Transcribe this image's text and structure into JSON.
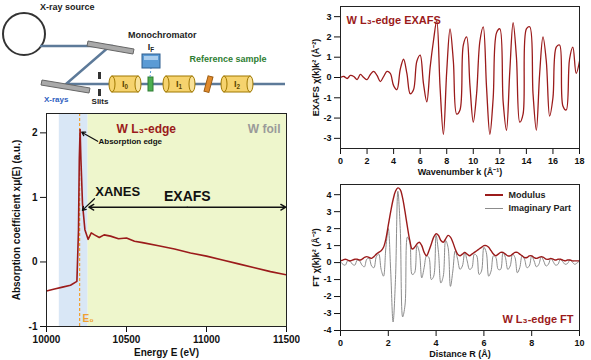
{
  "diagram": {
    "source": "X-ray source",
    "monochromator": "Monochromator",
    "beam": "X-rays",
    "slits": "Slits",
    "detectors": [
      "I0",
      "I1",
      "I2"
    ],
    "fluorescence": "IF",
    "reference": "Reference sample"
  },
  "chart_data": [
    {
      "type": "line",
      "title": "W L₃-edge",
      "subtitle": "W foil",
      "annotation": "Absorption edge",
      "xlabel": "Energy E (eV)",
      "ylabel": "Absorption coefficient xμ(E) (a.u.)",
      "xlim": [
        10000,
        11500
      ],
      "xticks": [
        10000,
        10500,
        11000,
        11500
      ],
      "ylim": [
        -1,
        2.3
      ],
      "yticks": [
        -1,
        0,
        1,
        2
      ],
      "color": "#9b1b1b",
      "e0": 10207,
      "e0_label": "E₀",
      "regions": [
        {
          "name": "XANES",
          "x": [
            10080,
            10260
          ],
          "color": "#d9e7f6"
        },
        {
          "name": "EXAFS",
          "x": [
            10260,
            11500
          ],
          "color": "#eef6cc"
        }
      ],
      "x": [
        10000,
        10050,
        10100,
        10150,
        10190,
        10200,
        10205,
        10210,
        10215,
        10225,
        10240,
        10260,
        10280,
        10300,
        10330,
        10360,
        10400,
        10450,
        10500,
        10550,
        10600,
        10700,
        10800,
        10900,
        11000,
        11100,
        11200,
        11300,
        11400,
        11500
      ],
      "values": [
        -0.45,
        -0.42,
        -0.39,
        -0.36,
        -0.3,
        0.5,
        1.6,
        2.05,
        1.6,
        0.9,
        0.5,
        0.35,
        0.45,
        0.42,
        0.38,
        0.42,
        0.4,
        0.36,
        0.37,
        0.32,
        0.3,
        0.25,
        0.2,
        0.14,
        0.09,
        0.03,
        -0.03,
        -0.09,
        -0.15,
        -0.2
      ]
    },
    {
      "type": "line",
      "title": "W L₃-edge EXAFS",
      "xlabel": "Wavenumber k (Å⁻¹)",
      "ylabel": "EXAFS χ(k)k² (Å⁻²)",
      "xlim": [
        0,
        18
      ],
      "xticks": [
        0,
        2,
        4,
        6,
        8,
        10,
        12,
        14,
        16,
        18
      ],
      "ylim": [
        -3.5,
        3.5
      ],
      "yticks": [
        -3,
        -2,
        -1,
        0,
        1,
        2,
        3
      ],
      "color": "#9b1b1b",
      "x": [
        0,
        0.25,
        0.5,
        0.75,
        1,
        1.25,
        1.5,
        1.75,
        2,
        2.25,
        2.5,
        2.75,
        3,
        3.25,
        3.5,
        3.75,
        4,
        4.25,
        4.5,
        4.75,
        5,
        5.25,
        5.5,
        5.75,
        6,
        6.25,
        6.5,
        6.75,
        7,
        7.25,
        7.5,
        7.75,
        8,
        8.25,
        8.5,
        8.75,
        9,
        9.25,
        9.5,
        9.75,
        10,
        10.25,
        10.5,
        10.75,
        11,
        11.25,
        11.5,
        11.75,
        12,
        12.25,
        12.5,
        12.75,
        13,
        13.25,
        13.5,
        13.75,
        14,
        14.25,
        14.5,
        14.75,
        15,
        15.25,
        15.5,
        15.75,
        16,
        16.25,
        16.5,
        16.75,
        17,
        17.25,
        17.5,
        17.75,
        18
      ],
      "values": [
        0,
        0.05,
        -0.05,
        0.1,
        0.05,
        -0.1,
        0.15,
        0,
        -0.1,
        0.15,
        0.3,
        0.1,
        -0.2,
        0.05,
        0.3,
        0.2,
        -0.4,
        -0.6,
        0.4,
        0.9,
        0.2,
        -0.8,
        -0.6,
        0.8,
        1.1,
        -0.3,
        -1.2,
        0.5,
        1.8,
        2.8,
        -0.5,
        -2.8,
        0.3,
        2.4,
        0.8,
        -1.8,
        -1.6,
        1.6,
        2.0,
        -0.4,
        -2.2,
        -0.8,
        1.8,
        2.5,
        -0.5,
        -2.8,
        -1.0,
        2.2,
        2.4,
        -1.2,
        -2.6,
        0.3,
        2.7,
        1.0,
        -2.2,
        -1.8,
        2.4,
        2.5,
        -0.8,
        -2.6,
        0.2,
        2.0,
        0.8,
        -1.9,
        -1.0,
        1.5,
        1.6,
        -1.4,
        -1.6,
        0.9,
        1.5,
        0.2,
        0.8
      ]
    },
    {
      "type": "line",
      "title": "W L₃-edge FT",
      "xlabel": "Distance R (Å)",
      "ylabel": "FT χ(k)k² (Å⁻³)",
      "xlim": [
        0,
        10
      ],
      "xticks": [
        0,
        2,
        4,
        6,
        8,
        10
      ],
      "ylim": [
        -4,
        4.6
      ],
      "yticks": [
        -4,
        -3,
        -2,
        -1,
        0,
        1,
        2,
        3,
        4
      ],
      "legend": "top-right",
      "x": [
        0,
        0.1,
        0.2,
        0.3,
        0.4,
        0.5,
        0.6,
        0.7,
        0.8,
        0.9,
        1,
        1.1,
        1.2,
        1.3,
        1.4,
        1.5,
        1.6,
        1.7,
        1.8,
        1.9,
        2,
        2.1,
        2.2,
        2.3,
        2.4,
        2.5,
        2.6,
        2.7,
        2.8,
        2.9,
        3,
        3.1,
        3.2,
        3.3,
        3.4,
        3.5,
        3.6,
        3.7,
        3.8,
        3.9,
        4,
        4.1,
        4.2,
        4.3,
        4.4,
        4.5,
        4.6,
        4.7,
        4.8,
        4.9,
        5,
        5.1,
        5.2,
        5.3,
        5.4,
        5.5,
        5.6,
        5.7,
        5.8,
        5.9,
        6,
        6.1,
        6.2,
        6.3,
        6.4,
        6.5,
        6.6,
        6.7,
        6.8,
        6.9,
        7,
        7.1,
        7.2,
        7.3,
        7.4,
        7.5,
        7.6,
        7.7,
        7.8,
        7.9,
        8,
        8.1,
        8.2,
        8.3,
        8.4,
        8.5,
        8.6,
        8.7,
        8.8,
        8.9,
        9,
        9.1,
        9.2,
        9.3,
        9.4,
        9.5,
        9.6,
        9.7,
        9.8,
        9.9,
        10
      ],
      "series": [
        {
          "name": "Modulus",
          "color": "#9b1b1b",
          "values": [
            0.1,
            0.15,
            0.2,
            0.15,
            0.1,
            0.15,
            0.2,
            0.2,
            0.15,
            0.2,
            0.3,
            0.35,
            0.3,
            0.25,
            0.35,
            0.5,
            0.6,
            0.7,
            0.9,
            1.4,
            2.2,
            3.0,
            3.7,
            4.2,
            4.4,
            4.3,
            3.8,
            3.0,
            2.1,
            1.3,
            0.8,
            0.9,
            1.1,
            1.2,
            1.0,
            0.6,
            0.4,
            0.7,
            1.1,
            1.5,
            1.7,
            1.6,
            1.3,
            1.2,
            1.4,
            1.6,
            1.5,
            1.2,
            0.8,
            0.5,
            0.4,
            0.5,
            0.6,
            0.5,
            0.4,
            0.5,
            0.6,
            0.7,
            0.8,
            0.9,
            1.0,
            1.0,
            0.9,
            0.7,
            0.5,
            0.4,
            0.5,
            0.6,
            0.6,
            0.5,
            0.4,
            0.4,
            0.5,
            0.6,
            0.6,
            0.5,
            0.4,
            0.3,
            0.3,
            0.4,
            0.4,
            0.3,
            0.25,
            0.3,
            0.35,
            0.3,
            0.2,
            0.2,
            0.25,
            0.2,
            0.15,
            0.2,
            0.2,
            0.15,
            0.1,
            0.15,
            0.15,
            0.1,
            0.1,
            0.1,
            0.1
          ]
        },
        {
          "name": "Imaginary Part",
          "color": "#8c8c8c",
          "values": [
            0.05,
            -0.1,
            -0.15,
            0.1,
            0.08,
            -0.1,
            -0.15,
            0.15,
            0.1,
            -0.15,
            -0.25,
            0.2,
            0.25,
            -0.2,
            -0.3,
            0.35,
            0.5,
            -0.4,
            -0.8,
            0.9,
            2.0,
            -0.5,
            -3.5,
            -1.0,
            4.2,
            2.0,
            -3.2,
            -2.5,
            1.5,
            1.2,
            -0.7,
            -0.6,
            1.0,
            0.6,
            -0.9,
            -0.3,
            0.4,
            0.3,
            -1.0,
            -0.8,
            1.6,
            0.6,
            -1.2,
            -0.8,
            1.3,
            0.9,
            -1.4,
            -0.5,
            0.7,
            0.2,
            -0.4,
            -0.2,
            0.6,
            0.1,
            -0.4,
            -0.3,
            0.5,
            0.4,
            -0.7,
            -0.5,
            0.9,
            0.6,
            -0.8,
            -0.5,
            0.4,
            0.3,
            -0.4,
            -0.4,
            0.6,
            0.3,
            -0.4,
            -0.2,
            0.5,
            0.3,
            -0.6,
            -0.3,
            0.4,
            0.2,
            -0.3,
            -0.2,
            0.4,
            0.1,
            -0.25,
            -0.1,
            0.35,
            0.1,
            -0.2,
            -0.1,
            0.25,
            0.05,
            -0.15,
            -0.1,
            0.2,
            0.05,
            -0.1,
            -0.05,
            0.15,
            0.02,
            -0.1,
            -0.02,
            0.1
          ]
        }
      ]
    }
  ]
}
